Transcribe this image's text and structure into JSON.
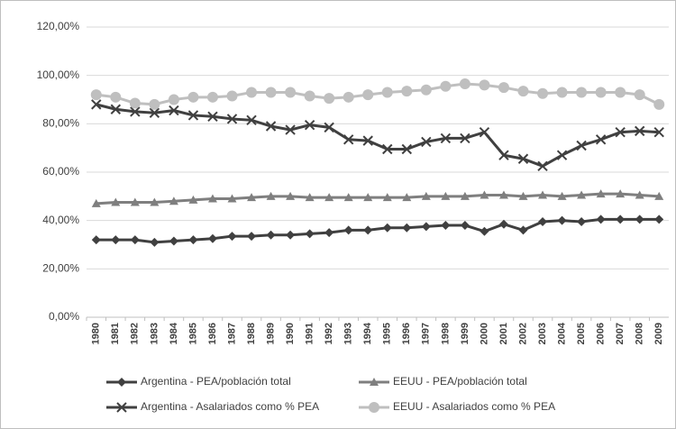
{
  "chart_data": {
    "type": "line",
    "categories": [
      "1980",
      "1981",
      "1982",
      "1983",
      "1984",
      "1985",
      "1986",
      "1987",
      "1988",
      "1989",
      "1990",
      "1991",
      "1992",
      "1993",
      "1994",
      "1995",
      "1996",
      "1997",
      "1998",
      "1999",
      "2000",
      "2001",
      "2002",
      "2003",
      "2004",
      "2005",
      "2006",
      "2007",
      "2008",
      "2009"
    ],
    "series": [
      {
        "name": "Argentina - PEA/población total",
        "color": "#404040",
        "marker": "diamond",
        "values": [
          32,
          32,
          32,
          31,
          31.5,
          32,
          32.5,
          33.5,
          33.5,
          34,
          34,
          34.5,
          35,
          36,
          36,
          37,
          37,
          37.5,
          38,
          38,
          35.5,
          38.5,
          36,
          39.5,
          40,
          39.5,
          40.5,
          40.5,
          40.5,
          40.5
        ]
      },
      {
        "name": "EEUU - PEA/población total",
        "color": "#7f7f7f",
        "marker": "triangle",
        "values": [
          47,
          47.5,
          47.5,
          47.5,
          48,
          48.5,
          49,
          49,
          49.5,
          50,
          50,
          49.5,
          49.5,
          49.5,
          49.5,
          49.5,
          49.5,
          50,
          50,
          50,
          50.5,
          50.5,
          50,
          50.5,
          50,
          50.5,
          51,
          51,
          50.5,
          50
        ]
      },
      {
        "name": "Argentina - Asalariados como % PEA",
        "color": "#404040",
        "marker": "x",
        "values": [
          88,
          86,
          85,
          84.5,
          85.5,
          83.5,
          83,
          82,
          81.5,
          79,
          77.5,
          79.5,
          78.5,
          73.5,
          73,
          69.5,
          69.5,
          72.5,
          74,
          74,
          76.5,
          67,
          65.5,
          62.5,
          67,
          71,
          73.5,
          76.5,
          77,
          76.5
        ]
      },
      {
        "name": "EEUU - Asalariados como % PEA",
        "color": "#bfbfbf",
        "marker": "circle",
        "values": [
          92,
          91,
          88.5,
          88,
          90,
          91,
          91,
          91.5,
          93,
          93,
          93,
          91.5,
          90.5,
          91,
          92,
          93,
          93.5,
          94,
          95.5,
          96.5,
          96,
          95,
          93.5,
          92.5,
          93,
          93,
          93,
          93,
          92,
          88
        ]
      }
    ],
    "ylim": [
      0,
      120
    ],
    "yticks": [
      {
        "value": 0,
        "label": "0,00%"
      },
      {
        "value": 20,
        "label": "20,00%"
      },
      {
        "value": 40,
        "label": "40,00%"
      },
      {
        "value": 60,
        "label": "60,00%"
      },
      {
        "value": 80,
        "label": "80,00%"
      },
      {
        "value": 100,
        "label": "100,00%"
      },
      {
        "value": 120,
        "label": "120,00%"
      }
    ],
    "grid": true,
    "legend": "bottom"
  }
}
